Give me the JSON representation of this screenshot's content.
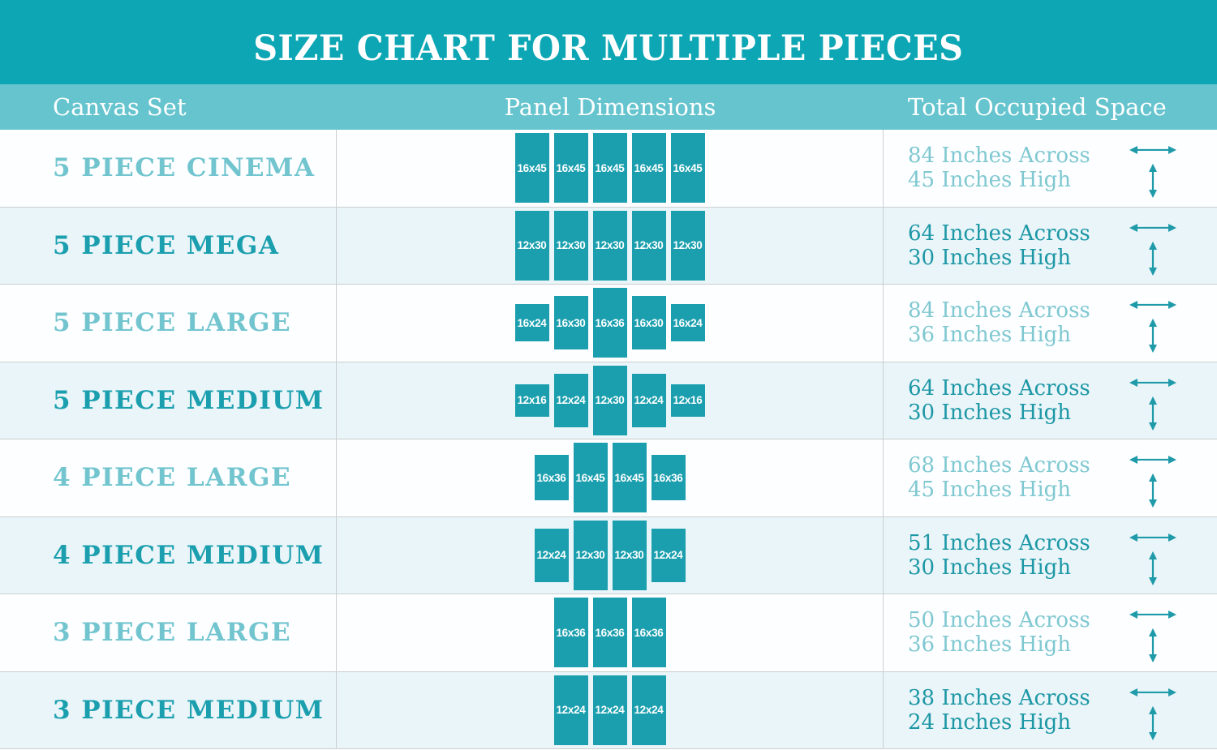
{
  "title": "SIZE CHART FOR MULTIPLE PIECES",
  "columns": {
    "canvas_set": "Canvas Set",
    "panel_dimensions": "Panel Dimensions",
    "total_occupied_space": "Total Occupied Space"
  },
  "icons": {
    "width_arrow": "left-right-arrow",
    "height_arrow": "up-down-arrow"
  },
  "colors": {
    "banner_bg": "#0ca6b4",
    "column_header_bg": "#66c4ce",
    "panel_fill": "#1b9fae",
    "row_bg_white": "#fdfeff",
    "row_bg_tint": "#e9f5f8",
    "label_light": "#72c5cf",
    "label_dark": "#1b9faf",
    "value_light": "#7fc8d1",
    "value_dark": "#1d97a6",
    "arrow": "#1e9aa9",
    "grid_border": "#cbcfd0"
  },
  "rows": [
    {
      "canvas_set": "5 PIECE CINEMA",
      "panels": [
        "16x45",
        "16x45",
        "16x45",
        "16x45",
        "16x45"
      ],
      "across": "84 Inches Across",
      "high": "45 Inches High",
      "tone": "light"
    },
    {
      "canvas_set": "5 PIECE MEGA",
      "panels": [
        "12x30",
        "12x30",
        "12x30",
        "12x30",
        "12x30"
      ],
      "across": "64 Inches Across",
      "high": "30 Inches High",
      "tone": "dark"
    },
    {
      "canvas_set": "5 PIECE LARGE",
      "panels": [
        "16x24",
        "16x30",
        "16x36",
        "16x30",
        "16x24"
      ],
      "across": "84 Inches Across",
      "high": "36 Inches High",
      "tone": "light"
    },
    {
      "canvas_set": "5 PIECE MEDIUM",
      "panels": [
        "12x16",
        "12x24",
        "12x30",
        "12x24",
        "12x16"
      ],
      "across": "64 Inches Across",
      "high": "30 Inches High",
      "tone": "dark"
    },
    {
      "canvas_set": "4 PIECE LARGE",
      "panels": [
        "16x36",
        "16x45",
        "16x45",
        "16x36"
      ],
      "across": "68 Inches Across",
      "high": "45 Inches High",
      "tone": "light"
    },
    {
      "canvas_set": "4 PIECE MEDIUM",
      "panels": [
        "12x24",
        "12x30",
        "12x30",
        "12x24"
      ],
      "across": "51 Inches Across",
      "high": "30 Inches High",
      "tone": "dark"
    },
    {
      "canvas_set": "3 PIECE LARGE",
      "panels": [
        "16x36",
        "16x36",
        "16x36"
      ],
      "across": "50 Inches Across",
      "high": "36 Inches High",
      "tone": "light"
    },
    {
      "canvas_set": "3 PIECE MEDIUM",
      "panels": [
        "12x24",
        "12x24",
        "12x24"
      ],
      "across": "38 Inches Across",
      "high": "24 Inches High",
      "tone": "dark"
    }
  ]
}
